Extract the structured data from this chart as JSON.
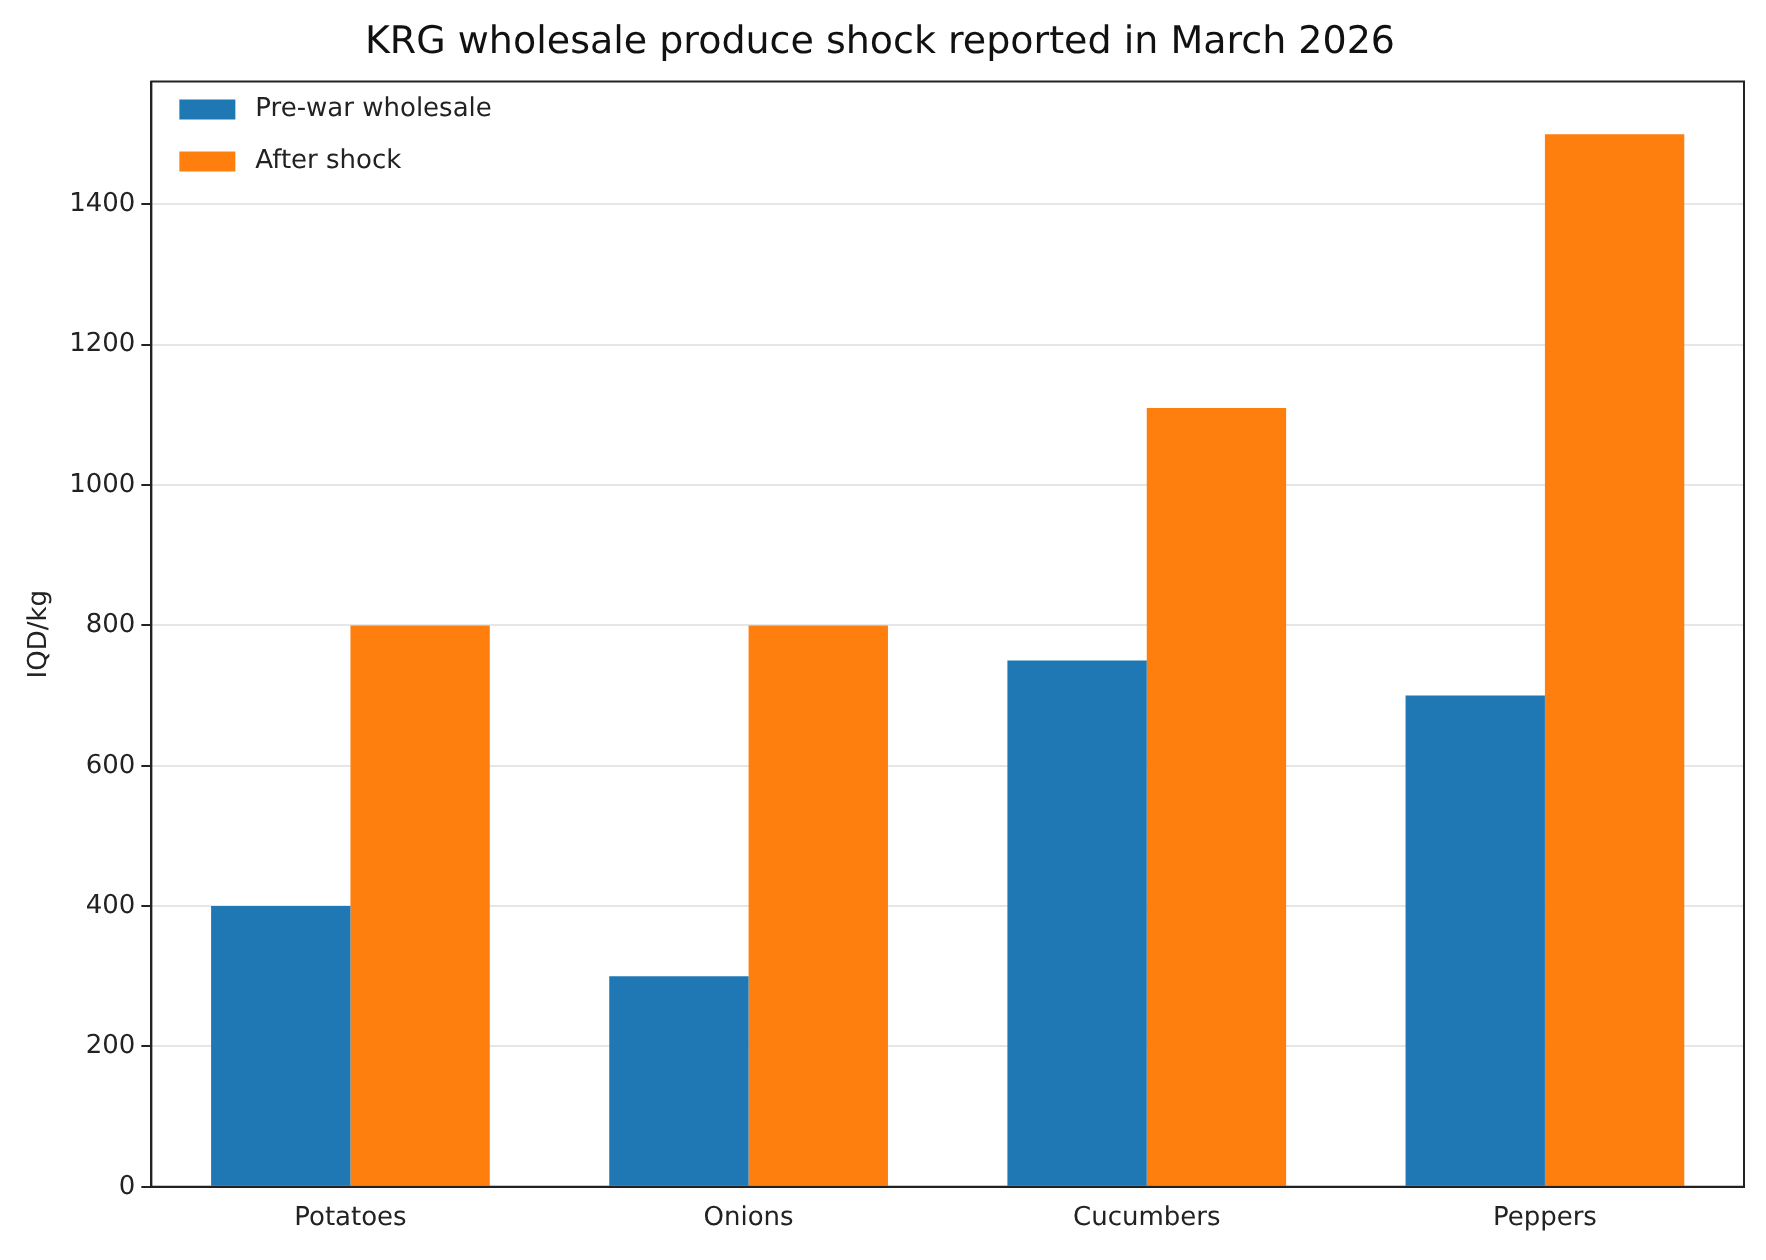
{
  "chart_data": {
    "type": "bar",
    "title": "KRG wholesale produce shock reported in March 2026",
    "ylabel": "IQD/kg",
    "categories": [
      "Potatoes",
      "Onions",
      "Cucumbers",
      "Peppers"
    ],
    "series": [
      {
        "name": "Pre-war wholesale",
        "color": "#1f77b4",
        "values": [
          400,
          300,
          750,
          700
        ]
      },
      {
        "name": "After shock",
        "color": "#ff7f0e",
        "values": [
          800,
          800,
          1110,
          1500
        ]
      }
    ],
    "ylim": [
      0,
      1575
    ],
    "yticks": [
      0,
      200,
      400,
      600,
      800,
      1000,
      1200,
      1400
    ],
    "grid": "y",
    "legend": "top left"
  }
}
